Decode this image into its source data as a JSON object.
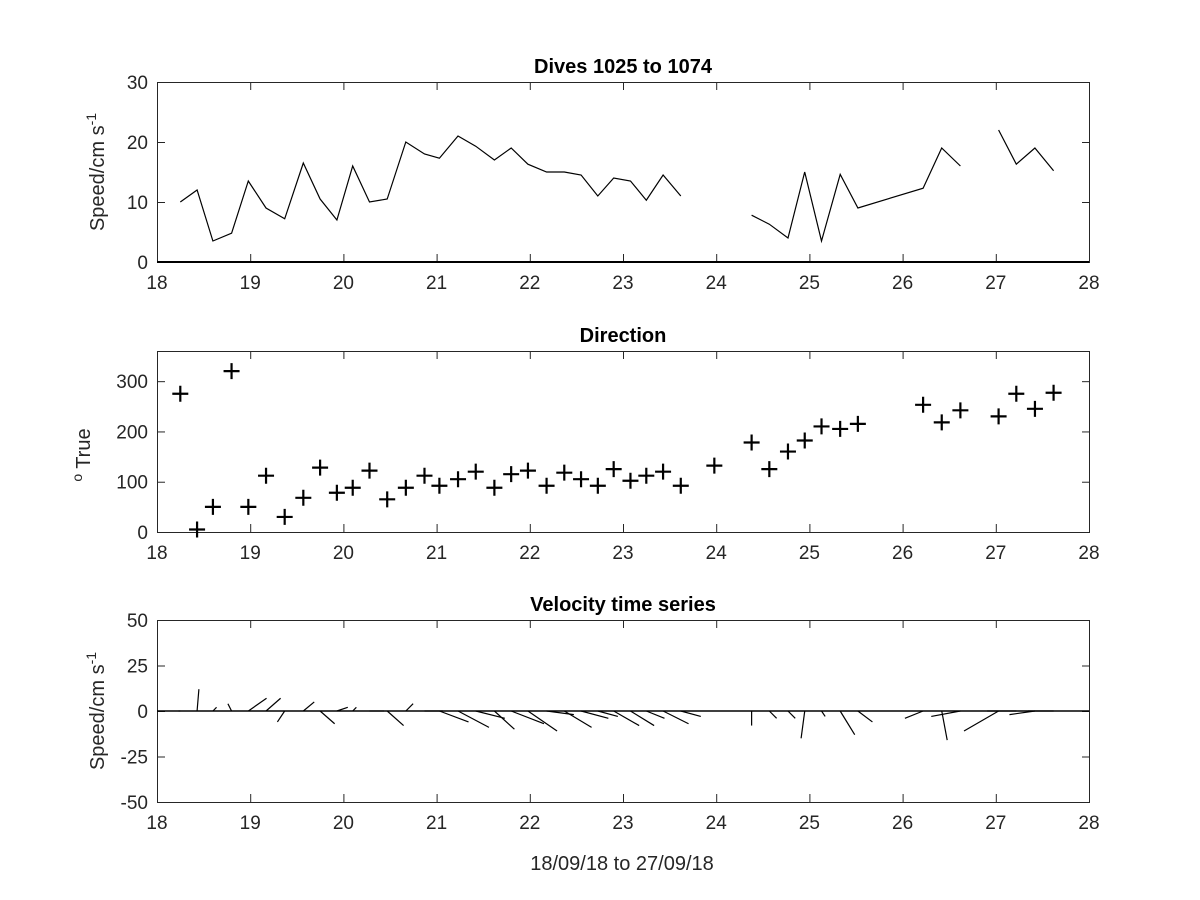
{
  "chart_data": [
    {
      "type": "line",
      "title": "Dives 1025 to 1074",
      "ylabel": "Speed/cm s",
      "ylabel_sup": "-1",
      "xlim": [
        18,
        28
      ],
      "ylim": [
        0,
        30
      ],
      "xticks": [
        18,
        19,
        20,
        21,
        22,
        23,
        24,
        25,
        26,
        27,
        28
      ],
      "yticks": [
        0,
        10,
        20,
        30
      ],
      "color": "#000000",
      "series": [
        {
          "segments": [
            {
              "x": [
                18.25,
                18.43,
                18.6,
                18.8,
                18.98,
                19.17,
                19.37,
                19.57,
                19.75,
                19.93,
                20.1,
                20.28,
                20.47,
                20.67,
                20.87,
                21.03,
                21.23,
                21.42,
                21.62,
                21.8,
                21.98,
                22.18,
                22.37,
                22.55,
                22.73,
                22.9,
                23.08,
                23.25,
                23.43,
                23.62
              ],
              "y": [
                10,
                12,
                3.5,
                4.8,
                13.5,
                9,
                7.2,
                16.5,
                10.5,
                7,
                16,
                10,
                10.5,
                20,
                18,
                17.3,
                21,
                19.3,
                17,
                19,
                16.3,
                15,
                15,
                14.5,
                11,
                14,
                13.5,
                10.3,
                14.5,
                11
              ]
            },
            {
              "x": [
                24.38,
                24.57,
                24.77,
                24.95,
                25.13,
                25.33,
                25.52,
                26.22,
                26.42,
                26.62
              ],
              "y": [
                7.8,
                6.3,
                4,
                15,
                3.5,
                14.6,
                9,
                12.3,
                19,
                16
              ]
            },
            {
              "x": [
                27.03,
                27.22,
                27.42,
                27.62
              ],
              "y": [
                22,
                16.3,
                19,
                15.2
              ]
            }
          ]
        }
      ]
    },
    {
      "type": "scatter",
      "title": "Direction",
      "ylabel": "True",
      "ylabel_sup": "o",
      "xlim": [
        18,
        28
      ],
      "ylim": [
        0,
        360
      ],
      "xticks": [
        18,
        19,
        20,
        21,
        22,
        23,
        24,
        25,
        26,
        27,
        28
      ],
      "yticks": [
        0,
        100,
        200,
        300
      ],
      "marker": "+",
      "color": "#000000",
      "x": [
        18.25,
        18.43,
        18.6,
        18.8,
        18.98,
        19.17,
        19.37,
        19.57,
        19.75,
        19.93,
        20.1,
        20.28,
        20.47,
        20.67,
        20.87,
        21.03,
        21.23,
        21.42,
        21.62,
        21.8,
        21.98,
        22.18,
        22.37,
        22.55,
        22.73,
        22.9,
        23.08,
        23.25,
        23.43,
        23.62,
        23.98,
        24.38,
        24.57,
        24.77,
        24.95,
        25.13,
        25.33,
        25.52,
        26.22,
        26.42,
        26.62,
        27.03,
        27.22,
        27.42,
        27.62
      ],
      "y": [
        275,
        5,
        50,
        320,
        50,
        112,
        30,
        68,
        128,
        78,
        88,
        122,
        65,
        88,
        112,
        92,
        105,
        120,
        88,
        115,
        122,
        92,
        118,
        105,
        92,
        125,
        102,
        112,
        120,
        92,
        132,
        178,
        125,
        160,
        182,
        210,
        205,
        215,
        253,
        218,
        242,
        230,
        275,
        245,
        277
      ]
    },
    {
      "type": "line",
      "title": "Velocity time series",
      "ylabel": "Speed/cm s",
      "ylabel_sup": "-1",
      "xlabel": "18/09/18 to 27/09/18",
      "xlim": [
        18,
        28
      ],
      "ylim": [
        -50,
        50
      ],
      "xticks": [
        18,
        19,
        20,
        21,
        22,
        23,
        24,
        25,
        26,
        27,
        28
      ],
      "yticks": [
        -50,
        -25,
        0,
        25,
        50
      ],
      "color": "#000000",
      "x": [
        18.25,
        18.43,
        18.6,
        18.8,
        18.98,
        19.17,
        19.37,
        19.57,
        19.75,
        19.93,
        20.1,
        20.28,
        20.47,
        20.67,
        20.87,
        21.03,
        21.23,
        21.42,
        21.62,
        21.8,
        21.98,
        22.18,
        22.37,
        22.55,
        22.73,
        22.9,
        23.08,
        23.25,
        23.43,
        23.62,
        24.38,
        24.57,
        24.77,
        24.95,
        25.13,
        25.33,
        25.52,
        26.22,
        26.42,
        26.62,
        27.03,
        27.22,
        27.42,
        27.62
      ],
      "u": [
        -1,
        1,
        2,
        -2,
        10,
        8,
        -4,
        6,
        8,
        6,
        2,
        8,
        9,
        4,
        10,
        16,
        17,
        16,
        11,
        18,
        16,
        15,
        15,
        15,
        11,
        14,
        13,
        10,
        14,
        11,
        0,
        4,
        4,
        -2,
        2,
        8,
        8,
        -10,
        3,
        -16,
        -19,
        -16,
        -14,
        -14
      ],
      "v": [
        0,
        12,
        2,
        4,
        7,
        7,
        -6,
        5,
        -7,
        2,
        2,
        0,
        -8,
        4,
        0,
        -6,
        -9,
        -4,
        -10,
        -7,
        -11,
        -2,
        -9,
        -4,
        -3,
        -8,
        -8,
        -4,
        -7,
        -3,
        -8,
        -4,
        -4,
        -15,
        -3,
        -13,
        -6,
        -4,
        -16,
        -3,
        -11,
        0,
        -2,
        0
      ]
    }
  ]
}
